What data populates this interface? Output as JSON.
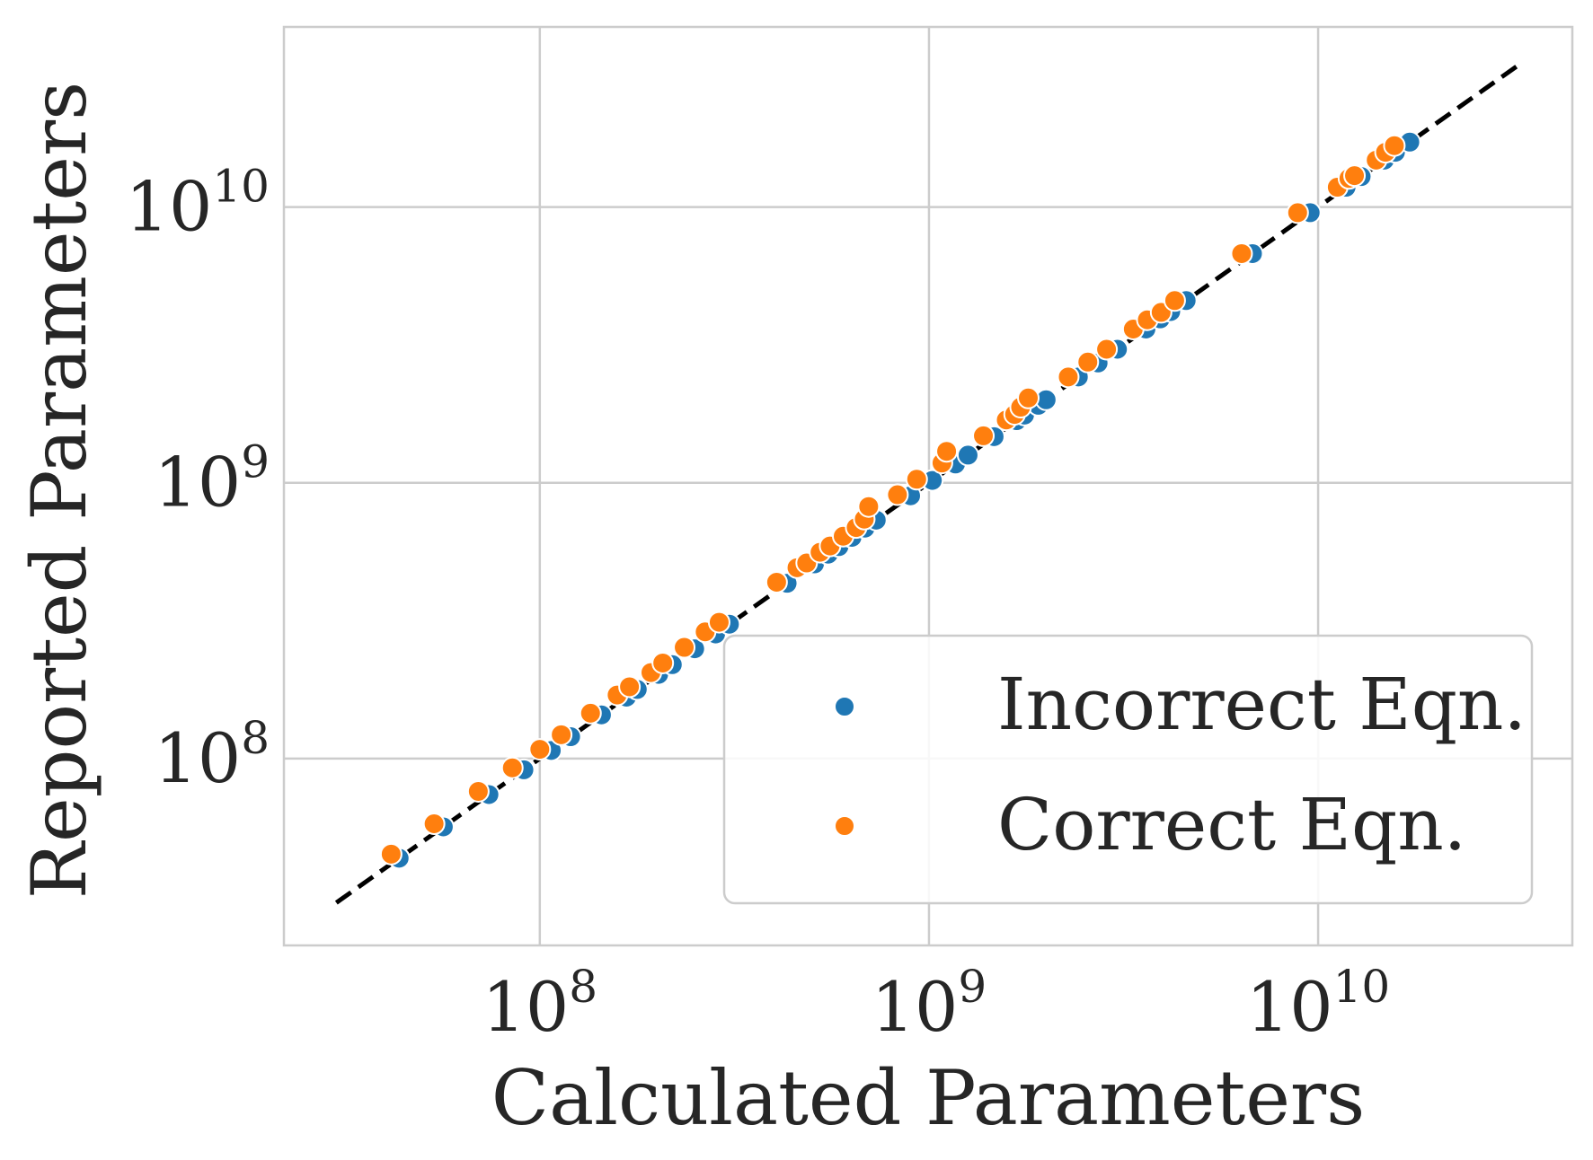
{
  "chart_data": {
    "type": "scatter",
    "title": "",
    "xlabel": "Calculated Parameters",
    "ylabel": "Reported Parameters",
    "xscale": "log",
    "yscale": "log",
    "xlim": [
      22000000,
      45000000000
    ],
    "ylim": [
      21000000,
      45000000000
    ],
    "grid": true,
    "legend_position": "lower-right",
    "x_ticks": [
      {
        "value": 100000000,
        "base": "10",
        "exp": "8"
      },
      {
        "value": 1000000000,
        "base": "10",
        "exp": "9"
      },
      {
        "value": 10000000000,
        "base": "10",
        "exp": "10"
      }
    ],
    "y_ticks": [
      {
        "value": 100000000,
        "base": "10",
        "exp": "8"
      },
      {
        "value": 1000000000,
        "base": "10",
        "exp": "9"
      },
      {
        "value": 10000000000,
        "base": "10",
        "exp": "10"
      }
    ],
    "reference_line": {
      "style": "dashed",
      "color": "#000000",
      "x": [
        30000000,
        33000000000
      ],
      "y": [
        30000000,
        33000000000
      ]
    },
    "series": [
      {
        "name": "Incorrect Eqn.",
        "color": "#1f77b4",
        "points": [
          [
            43500000,
            43500000
          ],
          [
            56500000,
            56500000
          ],
          [
            74000000,
            74000000
          ],
          [
            91000000,
            91000000
          ],
          [
            107000000,
            107000000
          ],
          [
            120000000,
            120000000
          ],
          [
            144000000,
            144000000
          ],
          [
            167000000,
            167000000
          ],
          [
            178000000,
            178000000
          ],
          [
            202000000,
            202000000
          ],
          [
            219000000,
            219000000
          ],
          [
            250000000,
            250000000
          ],
          [
            283000000,
            283000000
          ],
          [
            307000000,
            307000000
          ],
          [
            432000000,
            432000000
          ],
          [
            508000000,
            508000000
          ],
          [
            551000000,
            551000000
          ],
          [
            587000000,
            587000000
          ],
          [
            634000000,
            634000000
          ],
          [
            685000000,
            685000000
          ],
          [
            732000000,
            732000000
          ],
          [
            897000000,
            897000000
          ],
          [
            1020000000,
            1020000000
          ],
          [
            1170000000,
            1170000000
          ],
          [
            1260000000,
            1260000000
          ],
          [
            1470000000,
            1470000000
          ],
          [
            1680000000,
            1680000000
          ],
          [
            1760000000,
            1760000000
          ],
          [
            1910000000,
            1910000000
          ],
          [
            2000000000,
            2000000000
          ],
          [
            2420000000,
            2420000000
          ],
          [
            2720000000,
            2720000000
          ],
          [
            3050000000,
            3050000000
          ],
          [
            3610000000,
            3610000000
          ],
          [
            3930000000,
            3930000000
          ],
          [
            4180000000,
            4180000000
          ],
          [
            4580000000,
            4580000000
          ],
          [
            6780000000,
            6780000000
          ],
          [
            9540000000,
            9540000000
          ],
          [
            11800000000,
            11800000000
          ],
          [
            12900000000,
            12900000000
          ],
          [
            14800000000,
            14800000000
          ],
          [
            15800000000,
            15800000000
          ],
          [
            17200000000,
            17200000000
          ]
        ]
      },
      {
        "name": "Correct Eqn.",
        "color": "#ff7f0e",
        "points": [
          [
            41500000,
            45000000
          ],
          [
            53500000,
            58000000
          ],
          [
            69500000,
            76000000
          ],
          [
            85000000,
            92500000
          ],
          [
            100000000,
            108000000
          ],
          [
            113500000,
            122000000
          ],
          [
            135000000,
            146000000
          ],
          [
            158000000,
            170000000
          ],
          [
            170000000,
            182000000
          ],
          [
            193000000,
            205000000
          ],
          [
            207000000,
            222000000
          ],
          [
            235000000,
            253000000
          ],
          [
            266000000,
            288000000
          ],
          [
            289000000,
            312000000
          ],
          [
            406000000,
            436000000
          ],
          [
            458000000,
            492000000
          ],
          [
            485000000,
            512000000
          ],
          [
            525000000,
            560000000
          ],
          [
            557000000,
            590000000
          ],
          [
            602000000,
            640000000
          ],
          [
            650000000,
            688000000
          ],
          [
            682000000,
            738000000
          ],
          [
            700000000,
            820000000
          ],
          [
            830000000,
            905000000
          ],
          [
            930000000,
            1030000000
          ],
          [
            1080000000,
            1180000000
          ],
          [
            1110000000,
            1300000000
          ],
          [
            1380000000,
            1480000000
          ],
          [
            1580000000,
            1690000000
          ],
          [
            1660000000,
            1770000000
          ],
          [
            1720000000,
            1880000000
          ],
          [
            1800000000,
            2030000000
          ],
          [
            2280000000,
            2420000000
          ],
          [
            2560000000,
            2740000000
          ],
          [
            2860000000,
            3050000000
          ],
          [
            3350000000,
            3610000000
          ],
          [
            3640000000,
            3900000000
          ],
          [
            3950000000,
            4150000000
          ],
          [
            4280000000,
            4580000000
          ],
          [
            6360000000,
            6780000000
          ],
          [
            8860000000,
            9540000000
          ],
          [
            11200000000,
            11800000000
          ],
          [
            12000000000,
            12700000000
          ],
          [
            12400000000,
            13000000000
          ],
          [
            14100000000,
            14800000000
          ],
          [
            14900000000,
            15800000000
          ],
          [
            15700000000,
            16700000000
          ]
        ]
      }
    ]
  }
}
